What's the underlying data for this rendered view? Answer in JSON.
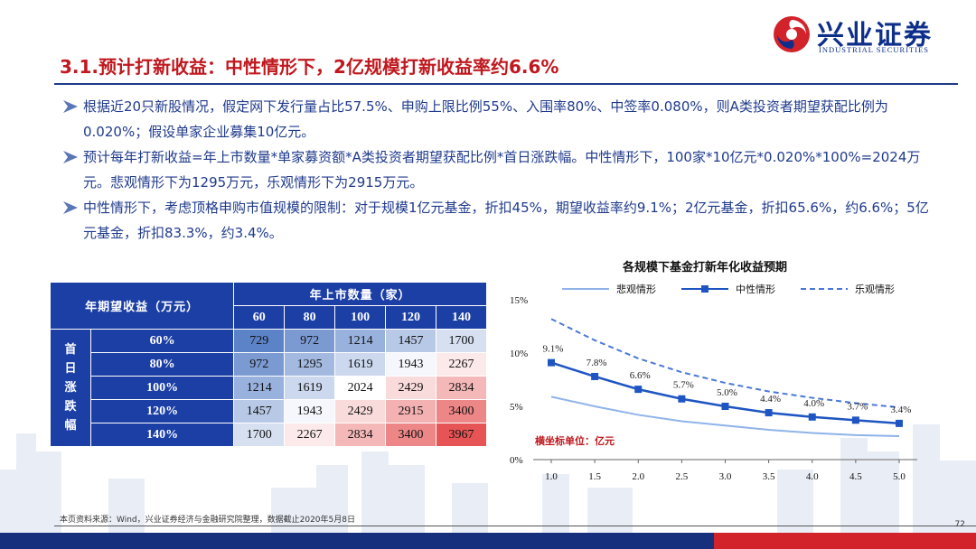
{
  "brand": {
    "name": "兴业证券",
    "name_en": "INDUSTRIAL SECURITIES",
    "colors": {
      "navy": "#0d2f8a",
      "red": "#c0181e",
      "table_header": "#1c3fa6"
    }
  },
  "title": "3.1.预计打新收益：中性情形下，2亿规模打新收益率约6.6%",
  "bullets": [
    {
      "icon": "bullet-arrow-icon",
      "text": "根据近20只新股情况，假定网下发行量占比57.5%、申购上限比例55%、入围率80%、中签率0.080%，则A类投资者期望获配比例为0.020%；假设单家企业募集10亿元。"
    },
    {
      "icon": "bullet-arrow-icon",
      "text": "预计每年打新收益=年上市数量*单家募资额*A类投资者期望获配比例*首日涨跌幅。中性情形下，100家*10亿元*0.020%*100%=2024万元。悲观情形下为1295万元，乐观情形下为2915万元。"
    },
    {
      "icon": "bullet-arrow-icon",
      "text": "中性情形下，考虑顶格申购市值规模的限制：对于规模1亿元基金，折扣45%，期望收益率约9.1%；2亿元基金，折扣65.6%，约6.6%；5亿元基金，折扣83.3%，约3.4%。"
    }
  ],
  "table": {
    "corner_label": "年期望收益（万元）",
    "col_group_label": "年上市数量（家）",
    "row_group_label": [
      "首",
      "日",
      "涨",
      "跌",
      "幅"
    ],
    "columns": [
      "60",
      "80",
      "100",
      "120",
      "140"
    ],
    "rows": [
      {
        "label": "60%",
        "values": [
          "729",
          "972",
          "1214",
          "1457",
          "1700"
        ]
      },
      {
        "label": "80%",
        "values": [
          "972",
          "1295",
          "1619",
          "1943",
          "2267"
        ]
      },
      {
        "label": "100%",
        "values": [
          "1214",
          "1619",
          "2024",
          "2429",
          "2834"
        ]
      },
      {
        "label": "120%",
        "values": [
          "1457",
          "1943",
          "2429",
          "2915",
          "3400"
        ]
      },
      {
        "label": "140%",
        "values": [
          "1700",
          "2267",
          "2834",
          "3400",
          "3967"
        ]
      }
    ]
  },
  "chart_data": {
    "type": "line",
    "title": "各规模下基金打新年化收益预期",
    "annotation": "横坐标单位：亿元",
    "x": [
      1.0,
      1.5,
      2.0,
      2.5,
      3.0,
      3.5,
      4.0,
      4.5,
      5.0
    ],
    "x_tick_labels": [
      "1.0",
      "1.5",
      "2.0",
      "2.5",
      "3.0",
      "3.5",
      "4.0",
      "4.5",
      "5.0"
    ],
    "ylim": [
      0,
      15
    ],
    "y_ticks": [
      "0%",
      "5%",
      "10%",
      "15%"
    ],
    "legend_position": "top",
    "series": [
      {
        "name": "悲观情形",
        "color": "#8fb3ea",
        "style": "solid",
        "values": [
          5.9,
          5.0,
          4.2,
          3.6,
          3.2,
          2.8,
          2.5,
          2.3,
          2.2
        ]
      },
      {
        "name": "中性情形",
        "color": "#1e55c2",
        "style": "solid-square",
        "values": [
          9.1,
          7.8,
          6.6,
          5.7,
          5.0,
          4.4,
          4.0,
          3.7,
          3.4
        ]
      },
      {
        "name": "乐观情形",
        "color": "#4a78d6",
        "style": "dashed",
        "values": [
          13.2,
          11.2,
          9.5,
          8.2,
          7.2,
          6.4,
          5.8,
          5.3,
          4.9
        ]
      }
    ],
    "data_labels": [
      "9.1%",
      "7.8%",
      "6.6%",
      "5.7%",
      "5.0%",
      "4.4%",
      "4.0%",
      "3.7%",
      "3.4%"
    ]
  },
  "footer": {
    "source": "本页资料来源：Wind，兴业证券经济与金融研究院整理，数据截止2020年5月8日",
    "page": "72"
  }
}
